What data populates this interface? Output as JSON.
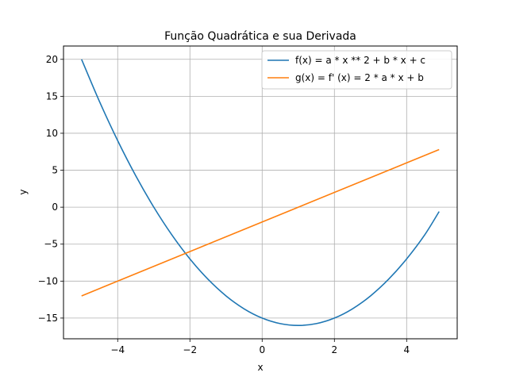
{
  "chart_data": {
    "type": "line",
    "title": "Função Quadrática e sua Derivada",
    "xlabel": "x",
    "ylabel": "y",
    "xlim": [
      -5.5,
      5.4
    ],
    "ylim": [
      -17.8,
      21.8
    ],
    "xticks": [
      -4,
      -2,
      0,
      2,
      4
    ],
    "xtick_labels": [
      "−4",
      "−2",
      "0",
      "2",
      "4"
    ],
    "yticks": [
      -15,
      -10,
      -5,
      0,
      5,
      10,
      15,
      20
    ],
    "ytick_labels": [
      "−15",
      "−10",
      "−5",
      "0",
      "5",
      "10",
      "15",
      "20"
    ],
    "grid": true,
    "legend_position": "top-right",
    "series": [
      {
        "name": "f(x) = a * x ** 2 + b * x + c",
        "color": "#1f77b4",
        "x": [
          -5,
          -4.5,
          -4,
          -3.5,
          -3,
          -2.5,
          -2,
          -1.5,
          -1,
          -0.5,
          0,
          0.5,
          1,
          1.5,
          2,
          2.5,
          3,
          3.5,
          4,
          4.5,
          4.9
        ],
        "y": [
          20,
          14.25,
          9,
          4.25,
          0,
          -3.75,
          -7,
          -9.75,
          -12,
          -13.75,
          -15,
          -15.75,
          -16,
          -15.75,
          -15,
          -13.75,
          -12,
          -9.75,
          -7,
          -3.75,
          -0.59
        ]
      },
      {
        "name": "g(x) = f' (x) = 2 * a * x + b",
        "color": "#ff7f0e",
        "x": [
          -5,
          4.9
        ],
        "y": [
          -12,
          7.8
        ]
      }
    ]
  }
}
